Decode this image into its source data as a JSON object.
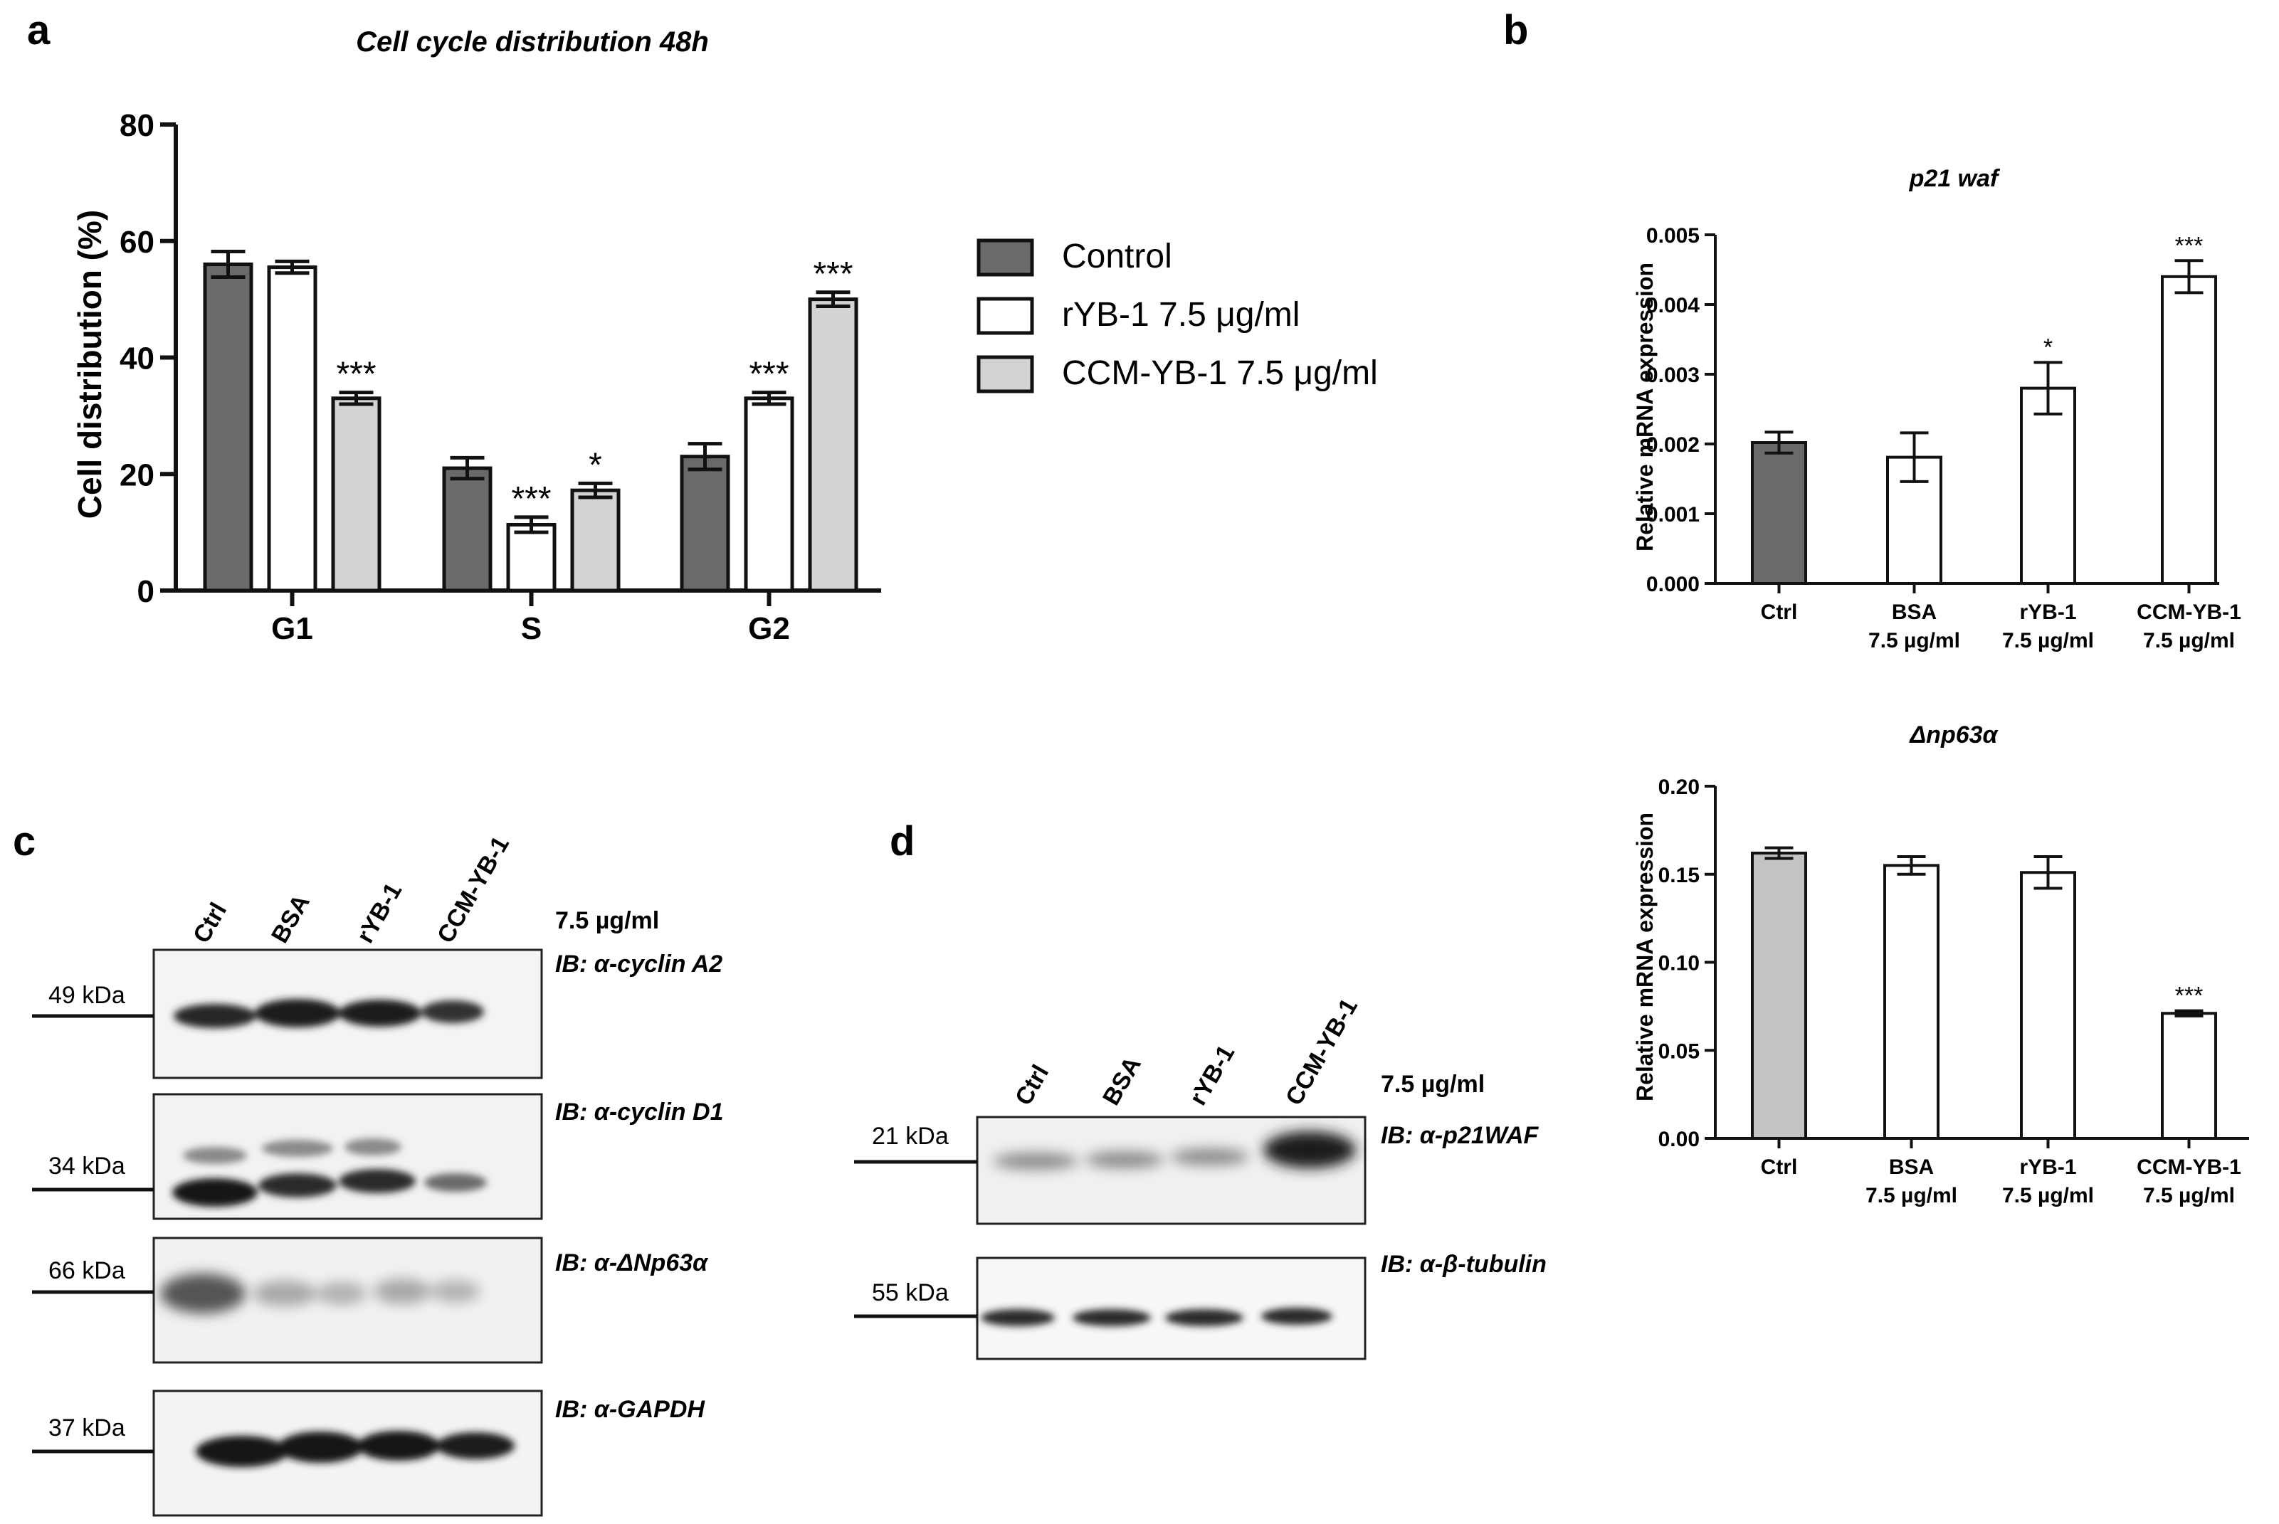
{
  "panels": {
    "a": "a",
    "b": "b",
    "c": "c",
    "d": "d"
  },
  "chart_data": [
    {
      "id": "a",
      "type": "bar",
      "title": "Cell cycle distribution 48h",
      "ylabel": "Cell distribution (%)",
      "xlabel": "",
      "ylim": [
        0,
        80
      ],
      "yticks": [
        "0",
        "20",
        "40",
        "60",
        "80"
      ],
      "categories": [
        "G1",
        "S",
        "G2"
      ],
      "legend_position": "right",
      "series": [
        {
          "name": "Control",
          "color": "#6a6a6a",
          "values": [
            56,
            21,
            23
          ],
          "errors": [
            2.2,
            1.8,
            2.2
          ],
          "sig": [
            "",
            "",
            ""
          ]
        },
        {
          "name": "rYB-1 7.5  μg/ml",
          "color": "#ffffff",
          "values": [
            55.5,
            11.3,
            33
          ],
          "errors": [
            1.0,
            1.3,
            1.0
          ],
          "sig": [
            "",
            "***",
            "***"
          ]
        },
        {
          "name": "CCM-YB-1 7.5  μg/ml",
          "color": "#d3d3d3",
          "values": [
            33,
            17.2,
            50
          ],
          "errors": [
            1.0,
            1.2,
            1.2
          ],
          "sig": [
            "***",
            "*",
            "***"
          ]
        }
      ]
    },
    {
      "id": "b1",
      "type": "bar",
      "title": "p21 waf",
      "ylabel": "Relative mRNA expression",
      "ylim": [
        0,
        0.005
      ],
      "yticks": [
        "0.000",
        "0.001",
        "0.002",
        "0.003",
        "0.004",
        "0.005"
      ],
      "categories": [
        [
          "Ctrl"
        ],
        [
          "BSA",
          "7.5 µg/ml"
        ],
        [
          "rYB-1",
          "7.5 µg/ml"
        ],
        [
          "CCM-YB-1",
          "7.5 µg/ml"
        ]
      ],
      "values": [
        0.00202,
        0.00181,
        0.0028,
        0.0044
      ],
      "errors": [
        0.00015,
        0.00035,
        0.00037,
        0.00023
      ],
      "sig": [
        "",
        "",
        "*",
        "***"
      ],
      "colors": [
        "#6a6a6a",
        "#ffffff",
        "#ffffff",
        "#ffffff"
      ]
    },
    {
      "id": "b2",
      "type": "bar",
      "title": "Δnp63α",
      "ylabel": "Relative mRNA expression",
      "ylim": [
        0,
        0.2
      ],
      "yticks": [
        "0.00",
        "0.05",
        "0.10",
        "0.15",
        "0.20"
      ],
      "categories": [
        [
          "Ctrl"
        ],
        [
          "BSA",
          "7.5 µg/ml"
        ],
        [
          "rYB-1",
          "7.5 µg/ml"
        ],
        [
          "CCM-YB-1",
          "7.5 µg/ml"
        ]
      ],
      "values": [
        0.162,
        0.155,
        0.151,
        0.071
      ],
      "errors": [
        0.003,
        0.005,
        0.009,
        0.0015
      ],
      "sig": [
        "",
        "",
        "",
        "***"
      ],
      "colors": [
        "#c3c3c3",
        "#ffffff",
        "#ffffff",
        "#ffffff"
      ]
    }
  ],
  "blot_c": {
    "lanes": [
      "Ctrl",
      "BSA",
      "rYB-1",
      "CCM-YB-1"
    ],
    "dose": "7.5 µg/ml",
    "rows": [
      {
        "marker": "49 kDa",
        "antibody": "IB: α-cyclin A2"
      },
      {
        "marker": "34 kDa",
        "antibody": "IB: α-cyclin D1"
      },
      {
        "marker": "66 kDa",
        "antibody": "IB: α-ΔNp63α"
      },
      {
        "marker": "37 kDa",
        "antibody": "IB: α-GAPDH"
      }
    ]
  },
  "blot_d": {
    "lanes": [
      "Ctrl",
      "BSA",
      "rYB-1",
      "CCM-YB-1"
    ],
    "dose": "7.5 µg/ml",
    "rows": [
      {
        "marker": "21 kDa",
        "antibody": "IB: α-p21WAF"
      },
      {
        "marker": "55 kDa",
        "antibody": "IB: α-β-tubulin"
      }
    ]
  }
}
